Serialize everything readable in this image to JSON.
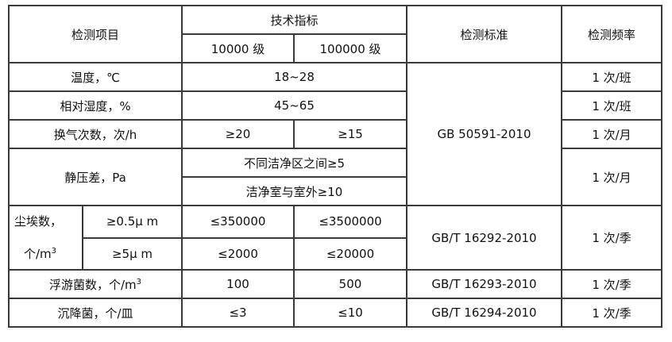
{
  "header": {
    "item": "检测项目",
    "spec": "技术指标",
    "class1": "10000 级",
    "class2": "100000 级",
    "standard": "检测标准",
    "frequency": "检测频率"
  },
  "rows": {
    "temp": {
      "item": "温度，℃",
      "value": "18~28",
      "freq": "1 次/班"
    },
    "humidity": {
      "item": "相对湿度，%",
      "value": "45~65",
      "freq": "1 次/班"
    },
    "air": {
      "item": "换气次数，次/h",
      "v1": "≥20",
      "v2": "≥15",
      "freq": "1 次/月"
    },
    "std1": "GB 50591-2010",
    "pressure": {
      "item": "静压差，Pa",
      "v1": "不同洁净区之间≥5",
      "v2": "洁净室与室外≥10",
      "freq": "1 次/月"
    },
    "dust": {
      "item": "尘埃数，",
      "unit": "个/m",
      "sup": "3",
      "size1": "≥0.5μ m",
      "size2": "≥5μ m",
      "a1": "≤350000",
      "a2": "≤3500000",
      "b1": "≤2000",
      "b2": "≤20000",
      "std": "GB/T 16292-2010",
      "freq": "1 次/季"
    },
    "float": {
      "item": "浮游菌数，个/m",
      "sup": "3",
      "v1": "100",
      "v2": "500",
      "std": "GB/T 16293-2010",
      "freq": "1 次/季"
    },
    "settle": {
      "item": "沉降菌，个/皿",
      "v1": "≤3",
      "v2": "≤10",
      "std": "GB/T 16294-2010",
      "freq": "1 次/季"
    }
  }
}
